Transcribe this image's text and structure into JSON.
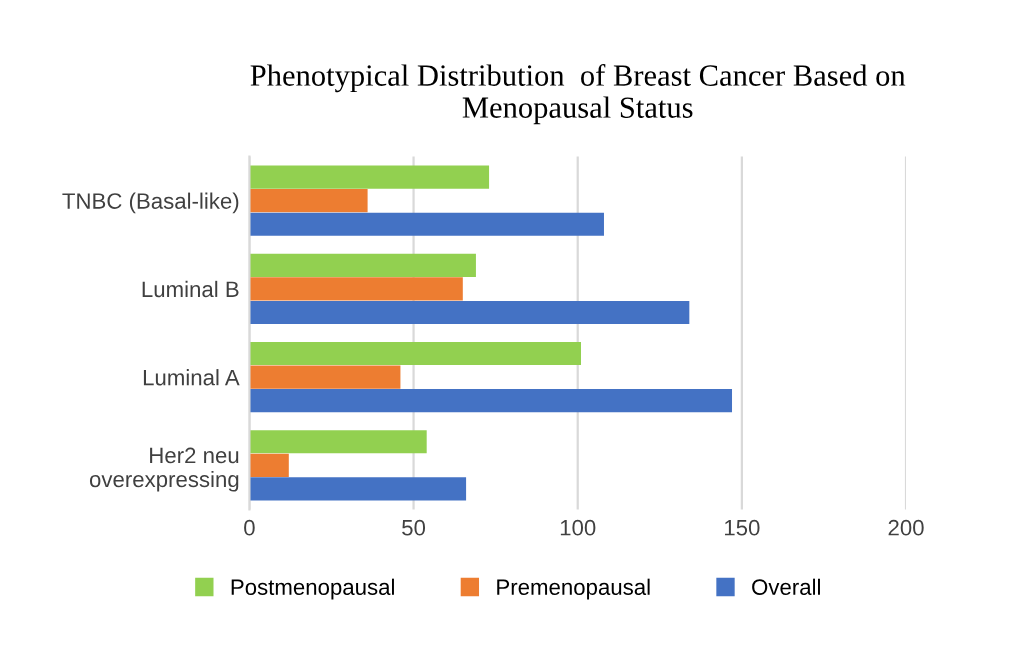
{
  "chart_data": {
    "type": "bar",
    "orientation": "horizontal",
    "title": "Phenotypical Distribution  of Breast Cancer Based on\nMenopausal Status",
    "categories": [
      "TNBC (Basal-like)",
      "Luminal B",
      "Luminal A",
      "Her2 neu\noverexpressing"
    ],
    "series": [
      {
        "name": "Postmenopausal",
        "color": "#92d050",
        "values": [
          73,
          69,
          101,
          54
        ]
      },
      {
        "name": "Premenopausal",
        "color": "#ed7d31",
        "values": [
          36,
          65,
          46,
          12
        ]
      },
      {
        "name": "Overall",
        "color": "#4472c4",
        "values": [
          108,
          134,
          147,
          66
        ]
      }
    ],
    "xlim": [
      0,
      200
    ],
    "xticks": [
      0,
      50,
      100,
      150,
      200
    ],
    "grid": "x",
    "legend": "bottom"
  }
}
